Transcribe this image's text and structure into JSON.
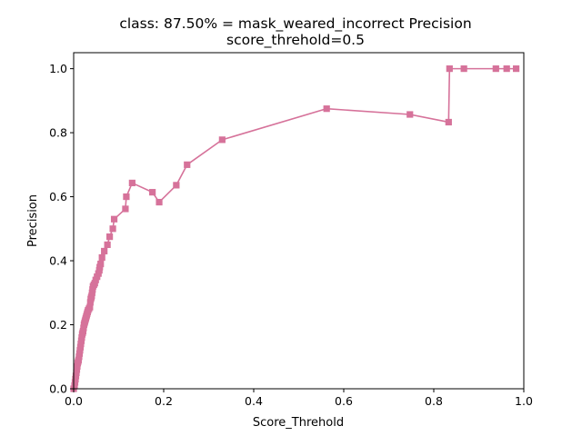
{
  "chart_data": {
    "type": "line",
    "title_line1": "class: 87.50% = mask_weared_incorrect Precision",
    "title_line2": "score_threhold=0.5",
    "xlabel": "Score_Threhold",
    "ylabel": "Precision",
    "xlim": [
      0.0,
      1.0
    ],
    "ylim": [
      0.0,
      1.05
    ],
    "xticks": [
      "0.0",
      "0.2",
      "0.4",
      "0.6",
      "0.8",
      "1.0"
    ],
    "yticks": [
      "0.0",
      "0.2",
      "0.4",
      "0.6",
      "0.8",
      "1.0"
    ],
    "grid": false,
    "legend": "none",
    "series": [
      {
        "color": "#d6729a",
        "marker": "square",
        "x": [
          0.0,
          0.002,
          0.003,
          0.004,
          0.005,
          0.006,
          0.007,
          0.008,
          0.009,
          0.01,
          0.011,
          0.012,
          0.013,
          0.014,
          0.015,
          0.016,
          0.017,
          0.018,
          0.019,
          0.02,
          0.021,
          0.022,
          0.023,
          0.024,
          0.025,
          0.026,
          0.027,
          0.028,
          0.029,
          0.03,
          0.031,
          0.032,
          0.034,
          0.036,
          0.037,
          0.038,
          0.039,
          0.04,
          0.041,
          0.042,
          0.043,
          0.045,
          0.047,
          0.049,
          0.052,
          0.055,
          0.057,
          0.058,
          0.06,
          0.063,
          0.068,
          0.075,
          0.08,
          0.087,
          0.09,
          0.115,
          0.117,
          0.13,
          0.175,
          0.19,
          0.228,
          0.252,
          0.33,
          0.562,
          0.747,
          0.833,
          0.835,
          0.867,
          0.938,
          0.962,
          0.983
        ],
        "y": [
          0.0,
          0.01,
          0.02,
          0.03,
          0.04,
          0.05,
          0.06,
          0.07,
          0.08,
          0.085,
          0.09,
          0.1,
          0.11,
          0.12,
          0.13,
          0.14,
          0.15,
          0.16,
          0.17,
          0.175,
          0.18,
          0.19,
          0.2,
          0.205,
          0.21,
          0.215,
          0.22,
          0.225,
          0.23,
          0.235,
          0.24,
          0.245,
          0.25,
          0.255,
          0.27,
          0.28,
          0.285,
          0.29,
          0.3,
          0.31,
          0.32,
          0.325,
          0.33,
          0.34,
          0.35,
          0.36,
          0.37,
          0.38,
          0.39,
          0.41,
          0.43,
          0.45,
          0.475,
          0.5,
          0.53,
          0.562,
          0.6,
          0.643,
          0.614,
          0.583,
          0.636,
          0.7,
          0.778,
          0.875,
          0.857,
          0.833,
          1.0,
          1.0,
          1.0,
          1.0,
          1.0
        ]
      }
    ]
  }
}
